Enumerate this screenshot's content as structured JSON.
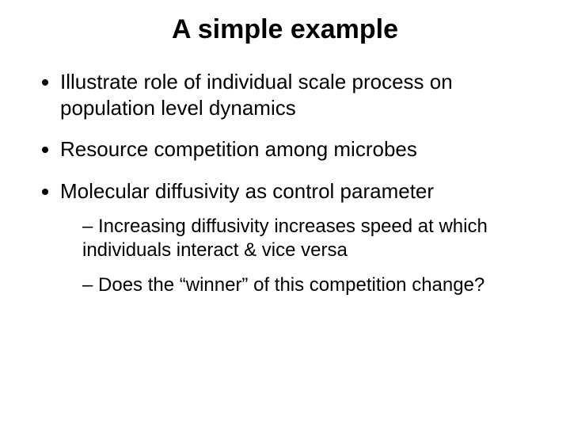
{
  "slide": {
    "title": "A simple example",
    "title_fontsize": 34,
    "body_fontsize": 26,
    "sub_fontsize": 24,
    "background_color": "#ffffff",
    "text_color": "#000000",
    "bullets": [
      {
        "text": "Illustrate role of individual scale process on population level dynamics",
        "sub": []
      },
      {
        "text": "Resource competition among microbes",
        "sub": []
      },
      {
        "text": "Molecular diffusivity as control parameter",
        "sub": [
          "Increasing diffusivity increases speed at which individuals interact & vice versa",
          "Does the “winner” of this competition change?"
        ]
      }
    ]
  }
}
